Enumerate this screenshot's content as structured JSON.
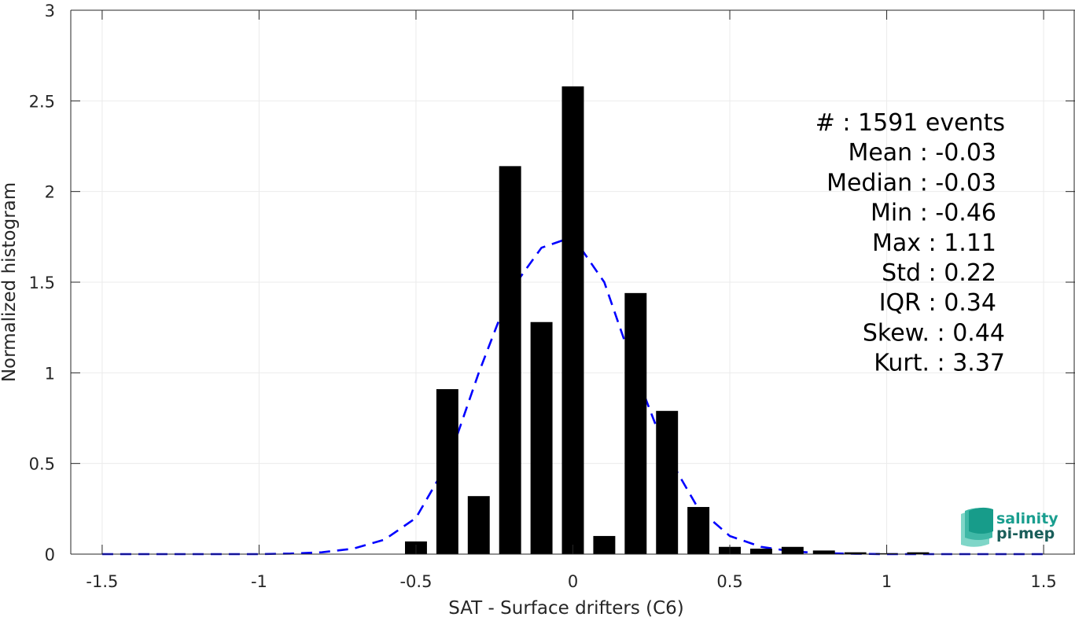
{
  "chart_data": {
    "type": "bar",
    "xlabel": "SAT - Surface drifters (C6)",
    "ylabel": "Normalized histogram",
    "xlim": [
      -1.6,
      1.6
    ],
    "ylim": [
      0,
      3
    ],
    "xticks": [
      -1.5,
      -1,
      -0.5,
      0,
      0.5,
      1,
      1.5
    ],
    "xtick_labels": [
      "-1.5",
      "-1",
      "-0.5",
      "0",
      "0.5",
      "1",
      "1.5"
    ],
    "yticks": [
      0,
      0.5,
      1,
      1.5,
      2,
      2.5,
      3
    ],
    "ytick_labels": [
      "0",
      "0.5",
      "1",
      "1.5",
      "2",
      "2.5",
      "3"
    ],
    "grid": true,
    "bar_width": 0.07,
    "bars": {
      "x": [
        -0.5,
        -0.4,
        -0.3,
        -0.2,
        -0.1,
        0.0,
        0.1,
        0.2,
        0.3,
        0.4,
        0.5,
        0.6,
        0.7,
        0.8,
        0.9,
        1.0,
        1.1
      ],
      "values": [
        0.07,
        0.91,
        0.32,
        2.14,
        1.28,
        2.58,
        0.1,
        1.44,
        0.79,
        0.26,
        0.04,
        0.03,
        0.04,
        0.02,
        0.01,
        0.005,
        0.01
      ],
      "color": "#000000"
    },
    "fit_curve": {
      "style": "dashed",
      "color": "#0000ff",
      "x": [
        -1.5,
        -1.4,
        -1.3,
        -1.2,
        -1.1,
        -1.0,
        -0.9,
        -0.8,
        -0.7,
        -0.6,
        -0.5,
        -0.4,
        -0.3,
        -0.2,
        -0.1,
        0.0,
        0.1,
        0.2,
        0.3,
        0.4,
        0.5,
        0.6,
        0.7,
        0.8,
        0.9,
        1.0,
        1.1,
        1.2,
        1.3,
        1.4,
        1.5
      ],
      "y": [
        0,
        0,
        0,
        0,
        0,
        0,
        0.003,
        0.01,
        0.03,
        0.08,
        0.2,
        0.5,
        1.0,
        1.45,
        1.69,
        1.75,
        1.5,
        1.0,
        0.55,
        0.25,
        0.1,
        0.04,
        0.015,
        0.005,
        0.002,
        0,
        0,
        0,
        0,
        0,
        0
      ]
    },
    "annotations": [
      {
        "label": "#  : 1591 events"
      },
      {
        "label": "Mean : -0.03"
      },
      {
        "label": "Median : -0.03"
      },
      {
        "label": "Min : -0.46"
      },
      {
        "label": "Max : 1.11"
      },
      {
        "label": "Std : 0.22"
      },
      {
        "label": "IQR : 0.34"
      },
      {
        "label": "Skew. : 0.44"
      },
      {
        "label": "Kurt. : 3.37"
      }
    ]
  },
  "logo": {
    "line1": "salinity",
    "line2": "pi-mep",
    "color": "#1a9e8f"
  }
}
